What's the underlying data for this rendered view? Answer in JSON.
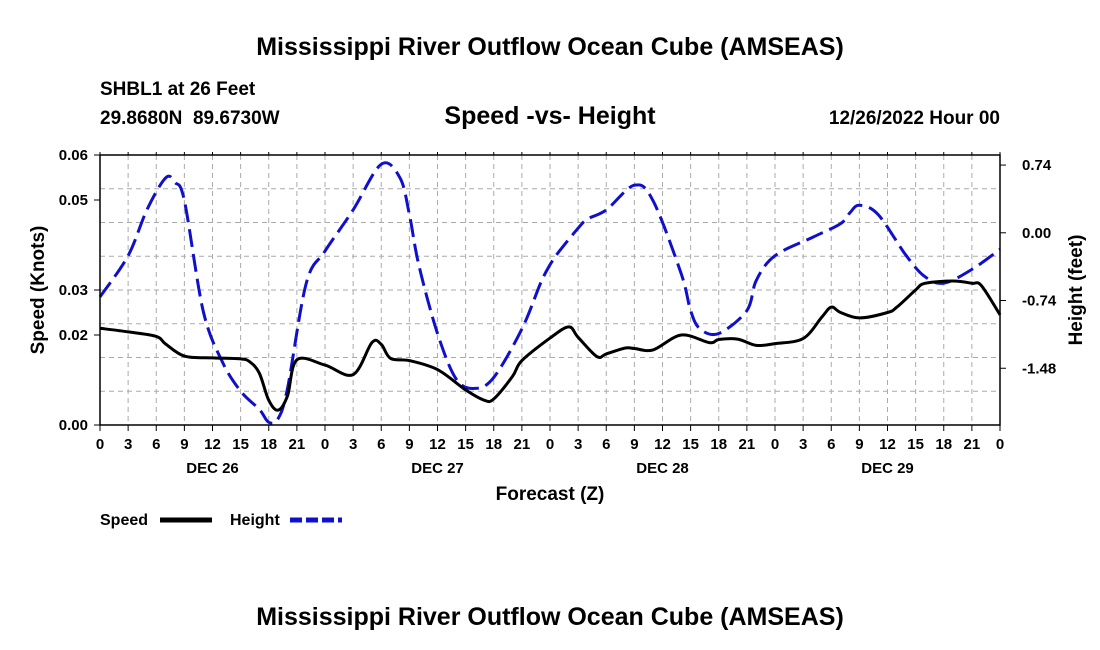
{
  "page_title": "Mississippi River Outflow Ocean Cube (AMSEAS)",
  "station": {
    "name": "SHBL1 at 26 Feet",
    "coords": "29.8680N  89.6730W",
    "datetime": "12/26/2022 Hour 00"
  },
  "footer_title": "Mississippi River Outflow Ocean Cube (AMSEAS)",
  "chart_data": {
    "type": "line",
    "title": "Speed -vs- Height",
    "xlabel": "Forecast (Z)",
    "ylabel": "Speed (Knots)",
    "y2label": "Height (feet)",
    "grid": true,
    "x_range_hours": [
      0,
      96
    ],
    "x_tick_step_hours": 3,
    "x_tick_labels": [
      "0",
      "3",
      "6",
      "9",
      "12",
      "15",
      "18",
      "21",
      "0",
      "3",
      "6",
      "9",
      "12",
      "15",
      "18",
      "21",
      "0",
      "3",
      "6",
      "9",
      "12",
      "15",
      "18",
      "21",
      "0",
      "3",
      "6",
      "9",
      "12",
      "15",
      "18",
      "21",
      "0"
    ],
    "x_day_labels": [
      {
        "hour": 12,
        "label": "DEC 26"
      },
      {
        "hour": 36,
        "label": "DEC 27"
      },
      {
        "hour": 60,
        "label": "DEC 28"
      },
      {
        "hour": 84,
        "label": "DEC 29"
      }
    ],
    "ylim": [
      0,
      0.06
    ],
    "y_ticks": [
      0,
      0.02,
      0.03,
      0.05,
      0.06
    ],
    "y_tick_labels": [
      "0.00",
      "0.02",
      "0.03",
      "0.05",
      "0.06"
    ],
    "y_gridlines": [
      0.0075,
      0.015,
      0.0225,
      0.03,
      0.0375,
      0.045,
      0.0525
    ],
    "y2lim": [
      -2.1,
      0.85
    ],
    "y2_ticks": [
      -1.48,
      -0.74,
      0.0,
      0.74
    ],
    "y2_tick_labels": [
      "-1.48",
      "-0.74",
      "0.00",
      "0.74"
    ],
    "legend": [
      {
        "name": "Speed",
        "color": "#000000",
        "dash": "solid"
      },
      {
        "name": "Height",
        "color": "#1010cc",
        "dash": "dashed"
      }
    ],
    "series": [
      {
        "name": "Speed",
        "axis": "left",
        "color": "#000000",
        "x": [
          0,
          3,
          6,
          7,
          9,
          12,
          15,
          16,
          17,
          18,
          19,
          20,
          21,
          24,
          27,
          29,
          30,
          31,
          33,
          36,
          39,
          41,
          42,
          44,
          45,
          48,
          50,
          51,
          53,
          54,
          56,
          57,
          59,
          62,
          65,
          66,
          68,
          70,
          72,
          75,
          77,
          78,
          79,
          81,
          84,
          85,
          87,
          88,
          91,
          93,
          94,
          96
        ],
        "y": [
          0.0215,
          0.0207,
          0.0197,
          0.018,
          0.0153,
          0.0149,
          0.0147,
          0.014,
          0.0115,
          0.0055,
          0.0033,
          0.0065,
          0.0145,
          0.0133,
          0.0112,
          0.0183,
          0.0179,
          0.0148,
          0.0143,
          0.0123,
          0.0078,
          0.0055,
          0.0058,
          0.0108,
          0.0143,
          0.0193,
          0.0218,
          0.0195,
          0.0152,
          0.0158,
          0.0171,
          0.017,
          0.0167,
          0.02,
          0.0183,
          0.019,
          0.0191,
          0.0177,
          0.0181,
          0.0192,
          0.024,
          0.0262,
          0.025,
          0.0238,
          0.025,
          0.0262,
          0.03,
          0.0315,
          0.032,
          0.0315,
          0.031,
          0.0245
        ]
      },
      {
        "name": "Height",
        "axis": "right",
        "color": "#1010cc",
        "x": [
          0,
          3,
          5,
          7,
          8,
          9,
          11,
          13,
          15,
          17,
          18,
          19,
          20,
          22,
          24,
          27,
          30,
          32,
          33,
          34,
          36,
          38,
          40,
          42,
          45,
          47,
          48,
          49,
          51,
          52,
          54,
          57,
          59,
          62,
          63,
          64,
          66,
          69,
          70,
          72,
          76,
          79,
          80,
          81,
          83,
          86,
          88,
          90,
          93,
          96
        ],
        "y": [
          -0.7,
          -0.25,
          0.25,
          0.6,
          0.55,
          0.35,
          -0.85,
          -1.4,
          -1.73,
          -1.93,
          -2.07,
          -2.03,
          -1.7,
          -0.55,
          -0.2,
          0.25,
          0.75,
          0.6,
          0.2,
          -0.35,
          -1.1,
          -1.6,
          -1.7,
          -1.58,
          -1.05,
          -0.55,
          -0.35,
          -0.2,
          0.05,
          0.15,
          0.25,
          0.52,
          0.35,
          -0.45,
          -0.85,
          -1.05,
          -1.1,
          -0.85,
          -0.52,
          -0.25,
          -0.05,
          0.1,
          0.22,
          0.3,
          0.2,
          -0.25,
          -0.48,
          -0.55,
          -0.4,
          -0.18
        ]
      }
    ]
  }
}
